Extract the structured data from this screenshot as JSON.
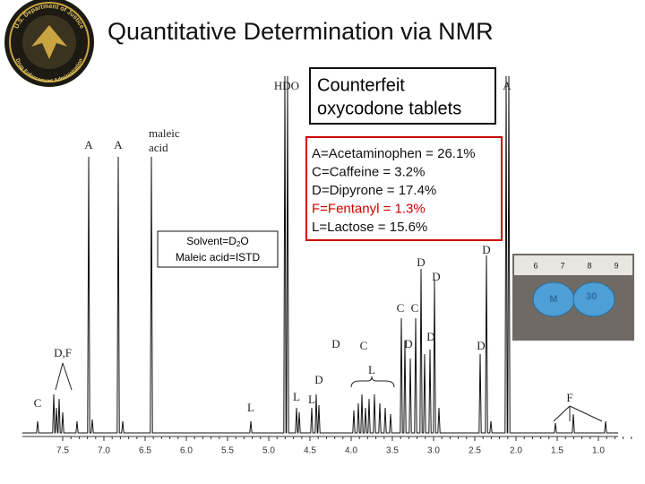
{
  "title": "Quantitative Determination via NMR",
  "seal": {
    "top_text": "U.S. Department of Justice",
    "bottom_text": "Drug Enforcement Administration"
  },
  "sample_box": {
    "lines": [
      "Counterfeit",
      "oxycodone tablets"
    ]
  },
  "results": [
    "A=Acetaminophen = 26.1%",
    "C=Caffeine = 3.2%",
    "D=Dipyrone = 17.4%",
    "F=Fentanyl = 1.3%",
    "L=Lactose = 15.6%"
  ],
  "solvent_box": {
    "solvent": {
      "prefix": "Solvent=D",
      "subscript": "2",
      "suffix": "O"
    },
    "standard": "Maleic acid=ISTD"
  },
  "spectrum": {
    "axis_ticks": [
      "7.5",
      "7.0",
      "6.5",
      "6.0",
      "5.5",
      "5.0",
      "4.5",
      "4.0",
      "3.5",
      "3.0",
      "2.5",
      "2.0",
      "1.5",
      "1.0"
    ],
    "peak_labels": [
      "HDO",
      "A",
      "maleic",
      "acid",
      "A",
      "A",
      "D",
      "D",
      "D",
      "C",
      "C",
      "D",
      "C",
      "D",
      "D",
      "D",
      "L",
      "D",
      "L",
      "L",
      "D,F",
      "C",
      "L",
      "F"
    ]
  },
  "photo": {
    "ruler_numbers": [
      "6",
      "7",
      "8",
      "9"
    ],
    "pill_text": "30"
  }
}
